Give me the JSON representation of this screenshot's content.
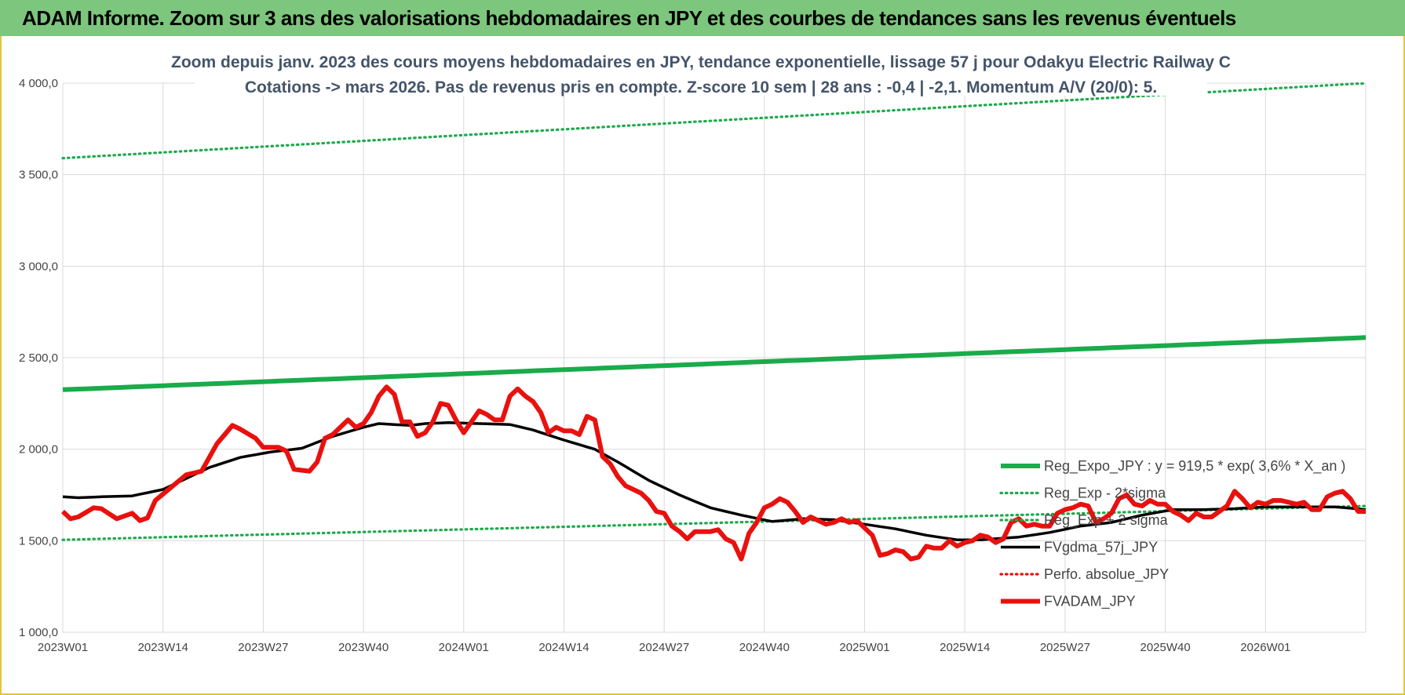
{
  "banner": {
    "title": "ADAM Informe. Zoom sur 3 ans des valorisations hebdomadaires en JPY et des courbes de tendances sans les revenus éventuels"
  },
  "chart_data": {
    "type": "line",
    "title": [
      "Zoom depuis janv. 2023 des cours moyens hebdomadaires en JPY, tendance exponentielle, lissage 57 j pour Odakyu Electric Railway C",
      "Cotations -> mars 2026. Pas de revenus pris en compte. Z-score 10 sem | 28 ans : -0,4 | -2,1. Momentum A/V (20/0): 5."
    ],
    "ylim": [
      1000,
      4000
    ],
    "yticks": [
      1000,
      1500,
      2000,
      2500,
      3000,
      3500,
      4000
    ],
    "ytick_labels": [
      "1 000,0",
      "1 500,0",
      "2 000,0",
      "2 500,0",
      "3 000,0",
      "3 500,0",
      "4 000,0"
    ],
    "x_tick_labels": [
      "2023W01",
      "2023W14",
      "2023W27",
      "2023W40",
      "2024W01",
      "2024W14",
      "2024W27",
      "2024W40",
      "2025W01",
      "2025W14",
      "2025W27",
      "2025W40",
      "2026W01"
    ],
    "x_tick_interval_weeks": 13,
    "n_weeks": 170,
    "grid": true,
    "legend_position": "bottom-right",
    "series": [
      {
        "name": "Reg_Expo_JPY : y = 919,5 * exp( 3,6% *  X_an )",
        "style": "solid-thick",
        "color": "#1aab4b",
        "anchors": [
          [
            0,
            2325
          ],
          [
            169,
            2610
          ]
        ]
      },
      {
        "name": "Reg_Exp - 2*sigma",
        "style": "dotted",
        "color": "#1aab4b",
        "anchors": [
          [
            0,
            1505
          ],
          [
            169,
            1690
          ]
        ]
      },
      {
        "name": "Reg_Exp + 2 sigma",
        "style": "dotted",
        "color": "#1aab4b",
        "anchors": [
          [
            0,
            3590
          ],
          [
            169,
            4000
          ]
        ]
      },
      {
        "name": "FVgdma_57j_JPY",
        "style": "solid",
        "color": "#000000",
        "anchors": [
          [
            0,
            1740
          ],
          [
            2,
            1735
          ],
          [
            5,
            1740
          ],
          [
            9,
            1745
          ],
          [
            13,
            1780
          ],
          [
            16,
            1840
          ],
          [
            19,
            1900
          ],
          [
            23,
            1955
          ],
          [
            27,
            1985
          ],
          [
            31,
            2005
          ],
          [
            35,
            2070
          ],
          [
            39,
            2120
          ],
          [
            41,
            2140
          ],
          [
            45,
            2130
          ],
          [
            47,
            2140
          ],
          [
            50,
            2145
          ],
          [
            54,
            2140
          ],
          [
            58,
            2135
          ],
          [
            61,
            2105
          ],
          [
            65,
            2050
          ],
          [
            69,
            2000
          ],
          [
            72,
            1930
          ],
          [
            76,
            1830
          ],
          [
            80,
            1750
          ],
          [
            84,
            1680
          ],
          [
            88,
            1640
          ],
          [
            92,
            1605
          ],
          [
            96,
            1620
          ],
          [
            100,
            1615
          ],
          [
            104,
            1590
          ],
          [
            108,
            1565
          ],
          [
            112,
            1530
          ],
          [
            116,
            1505
          ],
          [
            119,
            1505
          ],
          [
            124,
            1520
          ],
          [
            128,
            1545
          ],
          [
            132,
            1580
          ],
          [
            136,
            1600
          ],
          [
            140,
            1640
          ],
          [
            144,
            1670
          ],
          [
            148,
            1670
          ],
          [
            152,
            1675
          ],
          [
            156,
            1685
          ],
          [
            160,
            1685
          ],
          [
            165,
            1685
          ],
          [
            169,
            1670
          ]
        ]
      },
      {
        "name": "Perfo. absolue_JPY",
        "style": "dotted",
        "color": "#e8110e",
        "anchors": []
      },
      {
        "name": "FVADAM_JPY",
        "style": "solid-thick",
        "color": "#e8110e",
        "anchors": [
          [
            0,
            1660
          ],
          [
            1,
            1620
          ],
          [
            2,
            1630
          ],
          [
            4,
            1680
          ],
          [
            5,
            1675
          ],
          [
            7,
            1620
          ],
          [
            9,
            1650
          ],
          [
            10,
            1610
          ],
          [
            11,
            1625
          ],
          [
            12,
            1720
          ],
          [
            14,
            1790
          ],
          [
            16,
            1860
          ],
          [
            18,
            1880
          ],
          [
            20,
            2030
          ],
          [
            22,
            2130
          ],
          [
            23,
            2110
          ],
          [
            25,
            2060
          ],
          [
            26,
            2010
          ],
          [
            28,
            2010
          ],
          [
            29,
            1990
          ],
          [
            30,
            1890
          ],
          [
            32,
            1880
          ],
          [
            33,
            1930
          ],
          [
            34,
            2060
          ],
          [
            35,
            2080
          ],
          [
            37,
            2160
          ],
          [
            38,
            2120
          ],
          [
            39,
            2140
          ],
          [
            40,
            2200
          ],
          [
            41,
            2290
          ],
          [
            42,
            2340
          ],
          [
            43,
            2300
          ],
          [
            44,
            2150
          ],
          [
            45,
            2150
          ],
          [
            46,
            2070
          ],
          [
            47,
            2090
          ],
          [
            48,
            2150
          ],
          [
            49,
            2250
          ],
          [
            50,
            2240
          ],
          [
            51,
            2160
          ],
          [
            52,
            2090
          ],
          [
            53,
            2150
          ],
          [
            54,
            2210
          ],
          [
            55,
            2190
          ],
          [
            56,
            2160
          ],
          [
            57,
            2160
          ],
          [
            58,
            2290
          ],
          [
            59,
            2330
          ],
          [
            60,
            2290
          ],
          [
            61,
            2260
          ],
          [
            62,
            2200
          ],
          [
            63,
            2090
          ],
          [
            64,
            2120
          ],
          [
            65,
            2100
          ],
          [
            66,
            2100
          ],
          [
            67,
            2080
          ],
          [
            68,
            2180
          ],
          [
            69,
            2160
          ],
          [
            70,
            1960
          ],
          [
            71,
            1920
          ],
          [
            72,
            1850
          ],
          [
            73,
            1800
          ],
          [
            74,
            1780
          ],
          [
            75,
            1760
          ],
          [
            76,
            1720
          ],
          [
            77,
            1660
          ],
          [
            78,
            1650
          ],
          [
            79,
            1580
          ],
          [
            80,
            1550
          ],
          [
            81,
            1510
          ],
          [
            82,
            1550
          ],
          [
            83,
            1550
          ],
          [
            84,
            1550
          ],
          [
            85,
            1560
          ],
          [
            86,
            1510
          ],
          [
            87,
            1490
          ],
          [
            88,
            1400
          ],
          [
            89,
            1540
          ],
          [
            90,
            1600
          ],
          [
            91,
            1680
          ],
          [
            92,
            1700
          ],
          [
            93,
            1730
          ],
          [
            94,
            1710
          ],
          [
            95,
            1660
          ],
          [
            96,
            1600
          ],
          [
            97,
            1630
          ],
          [
            98,
            1610
          ],
          [
            99,
            1590
          ],
          [
            100,
            1600
          ],
          [
            101,
            1620
          ],
          [
            102,
            1600
          ],
          [
            103,
            1610
          ],
          [
            104,
            1570
          ],
          [
            105,
            1530
          ],
          [
            106,
            1420
          ],
          [
            107,
            1430
          ],
          [
            108,
            1450
          ],
          [
            109,
            1440
          ],
          [
            110,
            1400
          ],
          [
            111,
            1410
          ],
          [
            112,
            1470
          ],
          [
            113,
            1460
          ],
          [
            114,
            1460
          ],
          [
            115,
            1500
          ],
          [
            116,
            1470
          ],
          [
            117,
            1490
          ],
          [
            118,
            1500
          ],
          [
            119,
            1530
          ],
          [
            120,
            1520
          ],
          [
            121,
            1490
          ],
          [
            122,
            1510
          ],
          [
            123,
            1600
          ],
          [
            124,
            1620
          ],
          [
            125,
            1580
          ],
          [
            126,
            1590
          ],
          [
            127,
            1580
          ],
          [
            128,
            1580
          ],
          [
            129,
            1650
          ],
          [
            130,
            1670
          ],
          [
            131,
            1680
          ],
          [
            132,
            1700
          ],
          [
            133,
            1690
          ],
          [
            134,
            1600
          ],
          [
            135,
            1620
          ],
          [
            136,
            1650
          ],
          [
            137,
            1730
          ],
          [
            138,
            1750
          ],
          [
            139,
            1700
          ],
          [
            140,
            1690
          ],
          [
            141,
            1720
          ],
          [
            142,
            1700
          ],
          [
            143,
            1700
          ],
          [
            144,
            1660
          ],
          [
            145,
            1640
          ],
          [
            146,
            1610
          ],
          [
            147,
            1650
          ],
          [
            148,
            1630
          ],
          [
            149,
            1630
          ],
          [
            150,
            1660
          ],
          [
            151,
            1690
          ],
          [
            152,
            1770
          ],
          [
            153,
            1730
          ],
          [
            154,
            1680
          ],
          [
            155,
            1710
          ],
          [
            156,
            1700
          ],
          [
            157,
            1720
          ],
          [
            158,
            1720
          ],
          [
            159,
            1710
          ],
          [
            160,
            1700
          ],
          [
            161,
            1710
          ],
          [
            162,
            1670
          ],
          [
            163,
            1670
          ],
          [
            164,
            1740
          ],
          [
            165,
            1760
          ],
          [
            166,
            1770
          ],
          [
            167,
            1730
          ],
          [
            168,
            1660
          ],
          [
            169,
            1660
          ]
        ]
      }
    ]
  }
}
